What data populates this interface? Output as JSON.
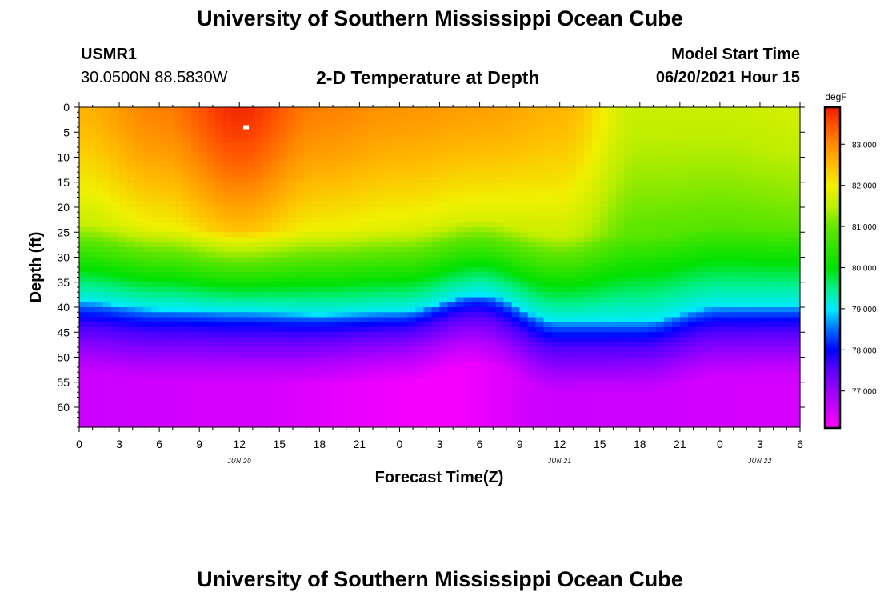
{
  "page": {
    "title_top": "University of Southern Mississippi Ocean Cube",
    "title_bottom": "University of Southern Mississippi Ocean Cube",
    "station_id": "USMR1",
    "station_coords": "30.0500N  88.5830W",
    "model_start_label": "Model Start Time",
    "model_start_value": "06/20/2021 Hour 15"
  },
  "chart_data": {
    "type": "heatmap",
    "title": "2-D Temperature at Depth",
    "xlabel": "Forecast Time(Z)",
    "ylabel": "Depth (ft)",
    "x_hours_range": [
      0,
      54
    ],
    "x_ticks": [
      {
        "hour": 0,
        "label": "0"
      },
      {
        "hour": 3,
        "label": "3"
      },
      {
        "hour": 6,
        "label": "6"
      },
      {
        "hour": 9,
        "label": "9"
      },
      {
        "hour": 12,
        "label": "12"
      },
      {
        "hour": 15,
        "label": "15"
      },
      {
        "hour": 18,
        "label": "18"
      },
      {
        "hour": 21,
        "label": "21"
      },
      {
        "hour": 24,
        "label": "0"
      },
      {
        "hour": 27,
        "label": "3"
      },
      {
        "hour": 30,
        "label": "6"
      },
      {
        "hour": 33,
        "label": "9"
      },
      {
        "hour": 36,
        "label": "12"
      },
      {
        "hour": 39,
        "label": "15"
      },
      {
        "hour": 42,
        "label": "18"
      },
      {
        "hour": 45,
        "label": "21"
      },
      {
        "hour": 48,
        "label": "0"
      },
      {
        "hour": 51,
        "label": "3"
      },
      {
        "hour": 54,
        "label": "6"
      }
    ],
    "date_labels": [
      {
        "hour": 12,
        "label": "JUN 20"
      },
      {
        "hour": 36,
        "label": "JUN 21"
      },
      {
        "hour": 51,
        "label": "JUN 22"
      }
    ],
    "y_range_ft": [
      0,
      64
    ],
    "y_ticks": [
      0,
      5,
      10,
      15,
      20,
      25,
      30,
      35,
      40,
      45,
      50,
      55,
      60
    ],
    "colorbar": {
      "unit": "degF",
      "range": [
        76.1,
        83.9
      ],
      "tick_values": [
        77,
        78,
        79,
        80,
        81,
        82,
        83
      ],
      "tick_labels": [
        "77.000",
        "78.000",
        "79.000",
        "80.000",
        "81.000",
        "82.000",
        "83.000"
      ]
    },
    "thermocline": {
      "description": "depth (ft) of the 79 degF transition vs forecast hour",
      "hours": [
        0,
        6,
        12,
        18,
        24,
        30,
        36,
        42,
        48,
        54
      ],
      "depth_ft": [
        39,
        40.5,
        41,
        41.5,
        41,
        37.5,
        43,
        43,
        40,
        40
      ]
    },
    "surface_temperature_degF": {
      "hours": [
        0,
        6,
        12,
        18,
        24,
        30,
        36,
        42,
        48,
        54
      ],
      "values": [
        82.6,
        83.1,
        83.8,
        83.1,
        82.9,
        82.8,
        82.6,
        81.6,
        81.6,
        81.7
      ]
    },
    "deep_temperature_degF": {
      "hours": [
        0,
        12,
        27,
        36,
        54
      ],
      "values": [
        76.6,
        76.5,
        76.2,
        76.6,
        76.5
      ]
    },
    "marker": {
      "hour": 12.5,
      "depth_ft": 4
    }
  }
}
